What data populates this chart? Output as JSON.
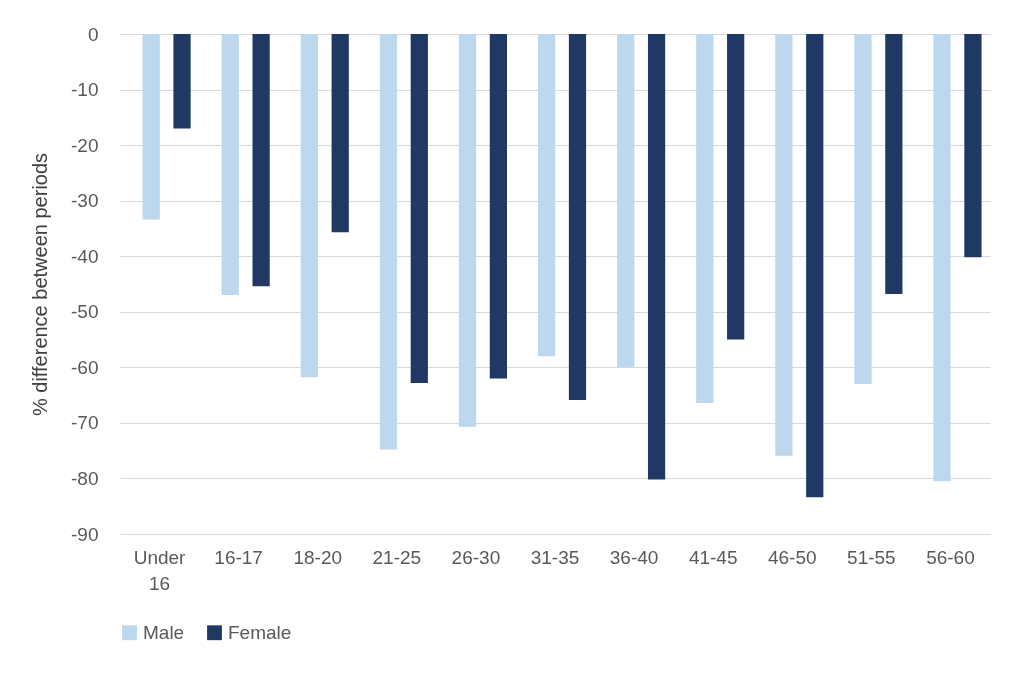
{
  "chart_data": {
    "type": "bar",
    "ylabel": "% difference between periods",
    "categories": [
      "Under 16",
      "16-17",
      "18-20",
      "21-25",
      "26-30",
      "31-35",
      "36-40",
      "41-45",
      "46-50",
      "51-55",
      "56-60"
    ],
    "series": [
      {
        "name": "Male",
        "color": "#bdd7ee",
        "values": [
          -33.4,
          -47,
          -61.8,
          -74.8,
          -70.7,
          -58,
          -60,
          -66.4,
          -75.9,
          -63,
          -80.5
        ]
      },
      {
        "name": "Female",
        "color": "#203864",
        "values": [
          -17,
          -45.4,
          -35.7,
          -62.8,
          -62,
          -65.9,
          -80.2,
          -55,
          -83.4,
          -46.8,
          -40.2
        ]
      }
    ],
    "ylim": [
      -90,
      0
    ],
    "yticks": [
      -90,
      -80,
      -70,
      -60,
      -50,
      -40,
      -30,
      -20,
      -10,
      0
    ],
    "grid": "y",
    "legend": "bottom"
  }
}
